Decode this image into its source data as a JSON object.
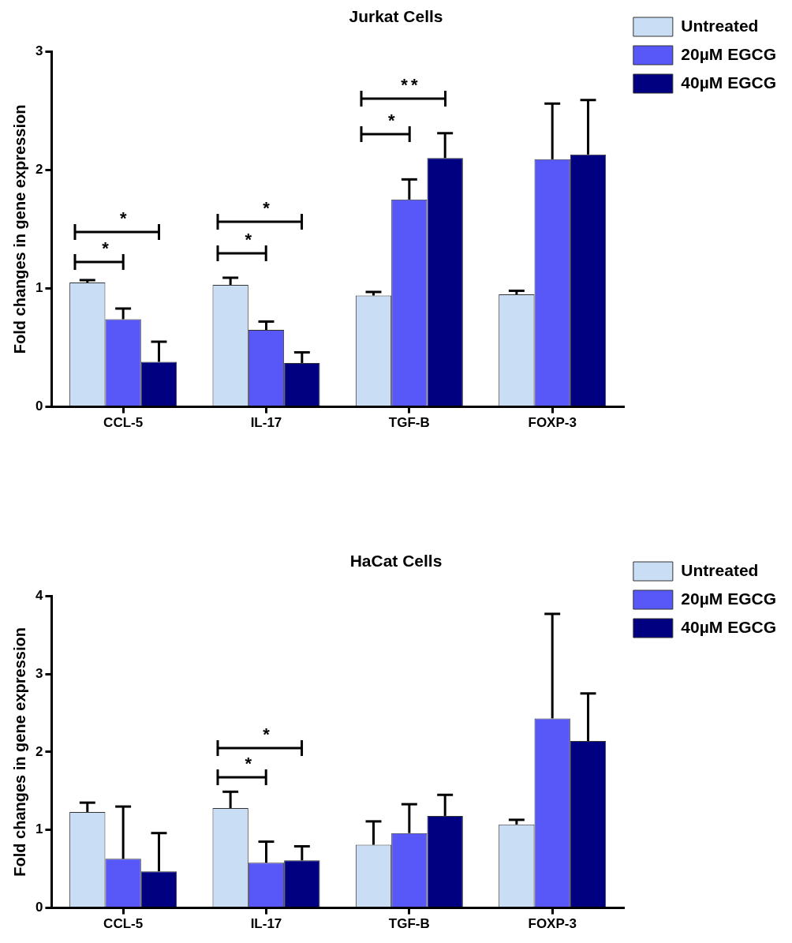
{
  "chart_data": [
    {
      "type": "bar",
      "title": "Jurkat Cells",
      "ylabel": "Fold changes in gene expression",
      "categories": [
        "CCL-5",
        "IL-17",
        "TGF-B",
        "FOXP-3"
      ],
      "series": [
        {
          "name": "Untreated",
          "color": "#c9ddf5",
          "values": [
            1.05,
            1.03,
            0.94,
            0.95
          ],
          "errors": [
            [
              1.05,
              1.07
            ],
            [
              1.03,
              1.09
            ],
            [
              0.94,
              0.97
            ],
            [
              0.95,
              0.98
            ]
          ]
        },
        {
          "name": "20µM EGCG",
          "color": "#5858f8",
          "values": [
            0.74,
            0.65,
            1.75,
            2.09
          ],
          "errors": [
            [
              0.74,
              0.83
            ],
            [
              0.65,
              0.72
            ],
            [
              1.75,
              1.92
            ],
            [
              2.09,
              2.56
            ]
          ]
        },
        {
          "name": "40µM EGCG",
          "color": "#000080",
          "values": [
            0.38,
            0.37,
            2.1,
            2.13
          ],
          "errors": [
            [
              0.38,
              0.55
            ],
            [
              0.37,
              0.46
            ],
            [
              2.1,
              2.31
            ],
            [
              2.13,
              2.59
            ]
          ]
        }
      ],
      "ylim": [
        0,
        3
      ],
      "yticks": [
        0,
        1,
        2,
        3
      ],
      "grid": false,
      "legend": "top right",
      "annotations": [
        "*",
        "*",
        "*",
        "*",
        "*",
        "**"
      ]
    },
    {
      "type": "bar",
      "title": "HaCat Cells",
      "ylabel": "Fold changes in gene expression",
      "categories": [
        "CCL-5",
        "IL-17",
        "TGF-B",
        "FOXP-3"
      ],
      "series": [
        {
          "name": "Untreated",
          "color": "#c9ddf5",
          "values": [
            1.23,
            1.28,
            0.81,
            1.07
          ],
          "errors": [
            [
              1.23,
              1.35
            ],
            [
              1.28,
              1.49
            ],
            [
              0.81,
              1.11
            ],
            [
              1.07,
              1.13
            ]
          ]
        },
        {
          "name": "20µM EGCG",
          "color": "#5858f8",
          "values": [
            0.63,
            0.58,
            0.96,
            2.43
          ],
          "errors": [
            [
              0.63,
              1.3
            ],
            [
              0.58,
              0.85
            ],
            [
              0.96,
              1.33
            ],
            [
              2.43,
              3.77
            ]
          ]
        },
        {
          "name": "40µM EGCG",
          "color": "#000080",
          "values": [
            0.47,
            0.61,
            1.18,
            2.14
          ],
          "errors": [
            [
              0.47,
              0.96
            ],
            [
              0.61,
              0.79
            ],
            [
              1.18,
              1.45
            ],
            [
              2.14,
              2.75
            ]
          ]
        }
      ],
      "ylim": [
        0,
        4
      ],
      "yticks": [
        0,
        1,
        2,
        3,
        4
      ],
      "grid": false,
      "legend": "top right",
      "annotations": [
        "*",
        "*"
      ]
    }
  ]
}
